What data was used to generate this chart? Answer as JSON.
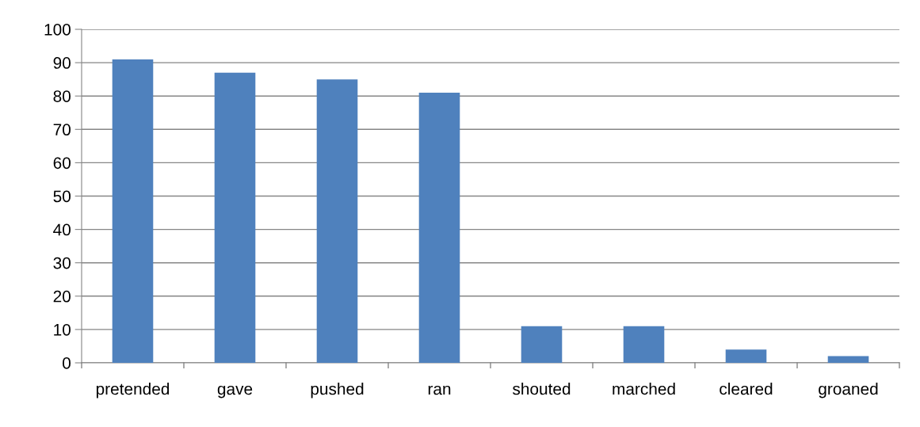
{
  "chart_data": {
    "type": "bar",
    "categories": [
      "pretended",
      "gave",
      "pushed",
      "ran",
      "shouted",
      "marched",
      "cleared",
      "groaned"
    ],
    "values": [
      91,
      87,
      85,
      81,
      11,
      11,
      4,
      2
    ],
    "color": "#4f81bd",
    "ylim": [
      0,
      100
    ],
    "yticks": [
      0,
      10,
      20,
      30,
      40,
      50,
      60,
      70,
      80,
      90,
      100
    ],
    "grid": "y",
    "legend": false
  }
}
